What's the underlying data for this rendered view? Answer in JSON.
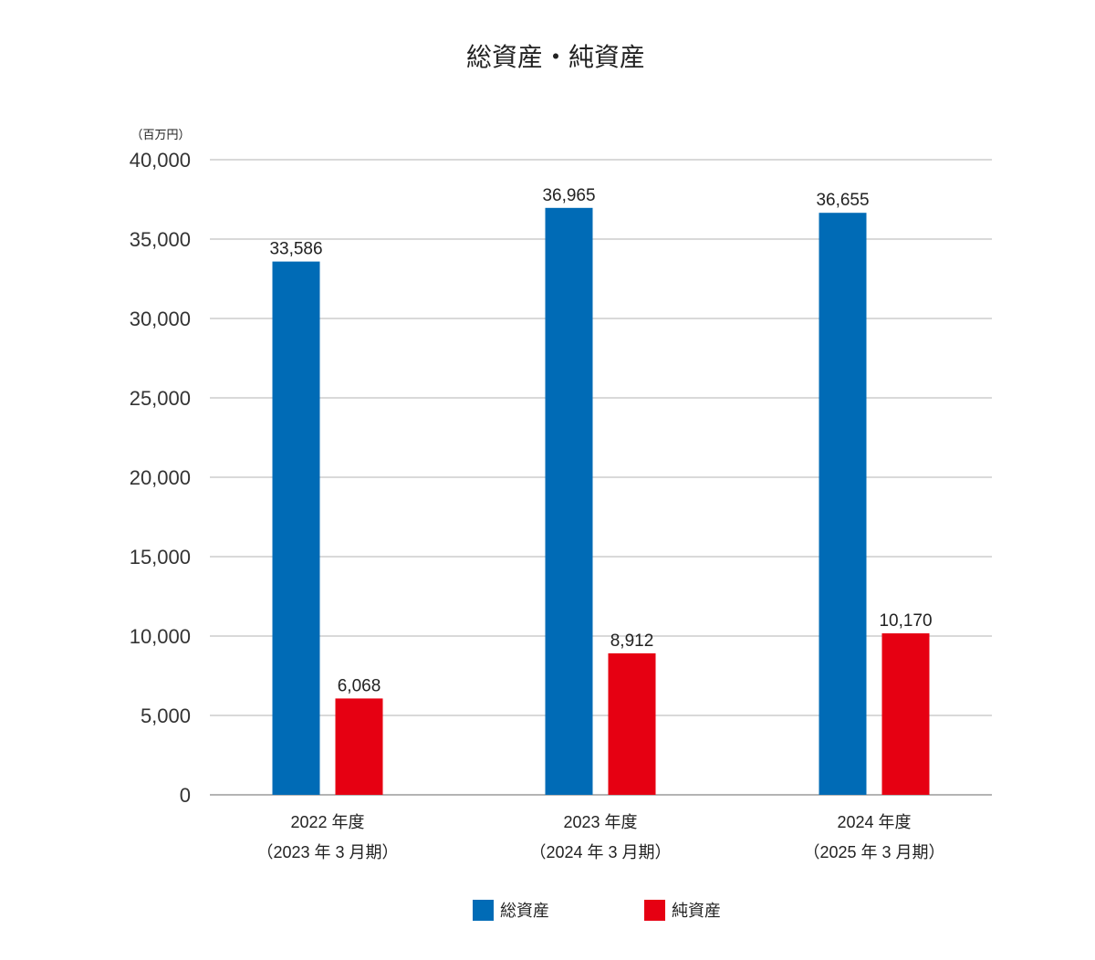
{
  "chart_data": {
    "type": "bar",
    "title": "総資産・純資産",
    "unit_label": "（百万円）",
    "categories": [
      [
        "2022 年度",
        "（2023 年 3 月期）"
      ],
      [
        "2023 年度",
        "（2024 年 3 月期）"
      ],
      [
        "2024 年度",
        "（2025 年 3 月期）"
      ]
    ],
    "series": [
      {
        "name": "総資産",
        "color": "#006bb6",
        "values": [
          33586,
          36965,
          36655
        ],
        "labels": [
          "33,586",
          "36,965",
          "36,655"
        ]
      },
      {
        "name": "純資産",
        "color": "#e60012",
        "values": [
          6068,
          8912,
          10170
        ],
        "labels": [
          "6,068",
          "8,912",
          "10,170"
        ]
      }
    ],
    "ylim": [
      0,
      40000
    ],
    "yticks": [
      0,
      5000,
      10000,
      15000,
      20000,
      25000,
      30000,
      35000,
      40000
    ],
    "ytick_labels": [
      "0",
      "5,000",
      "10,000",
      "15,000",
      "20,000",
      "25,000",
      "30,000",
      "35,000",
      "40,000"
    ],
    "grid": true,
    "legend_position": "bottom-center"
  }
}
